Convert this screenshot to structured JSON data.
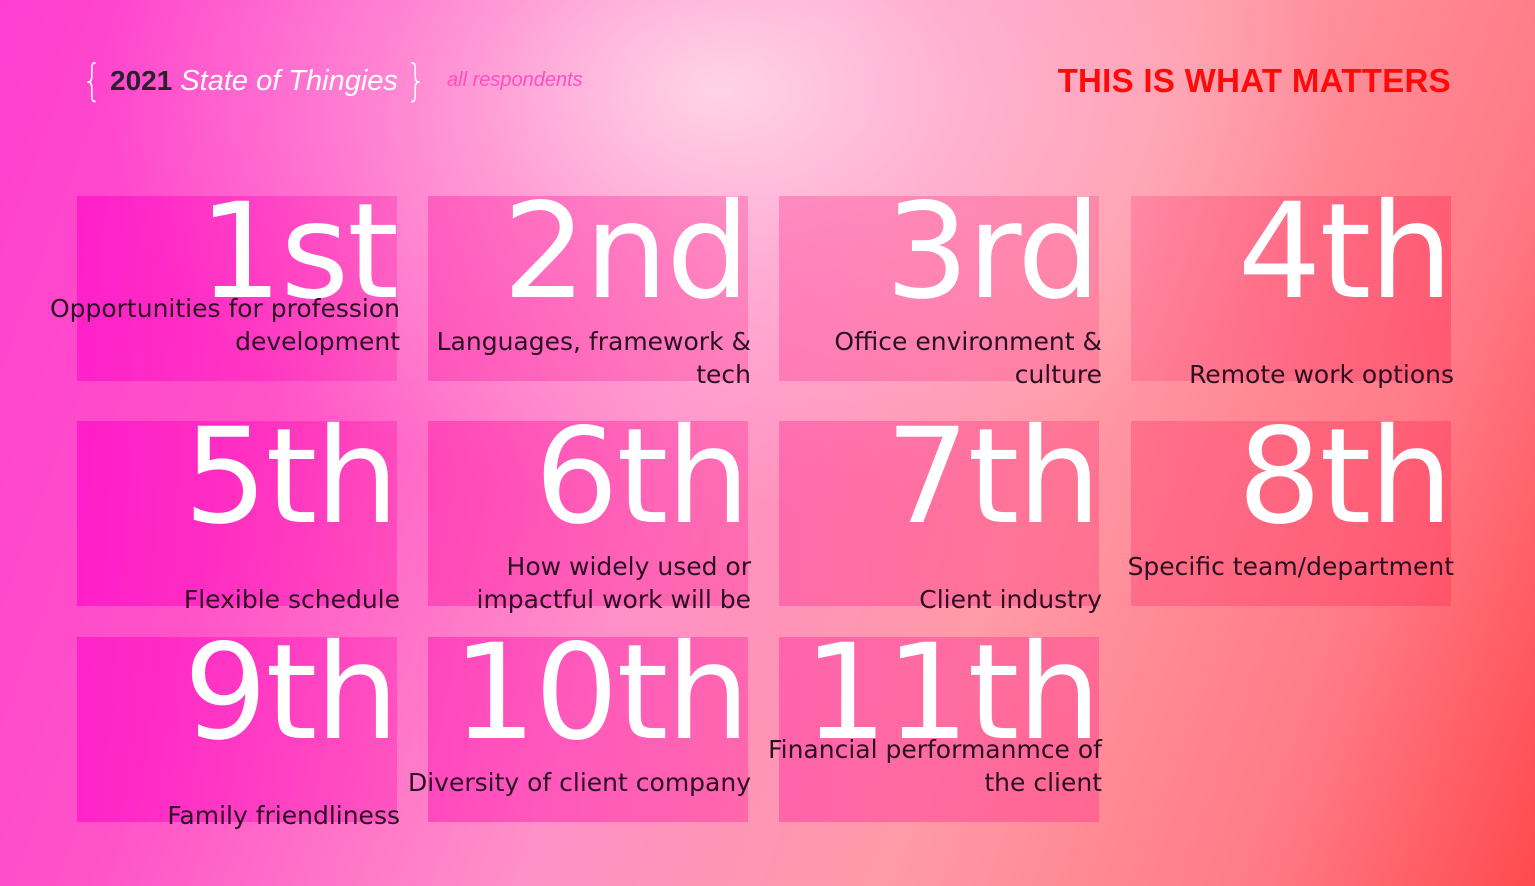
{
  "header": {
    "year": "2021",
    "title": "State of Thingies",
    "subtitle": "all respondents",
    "headline": "THIS IS WHAT MATTERS"
  },
  "ranks": [
    {
      "rank": "1st",
      "label": "Opportunities for profession development"
    },
    {
      "rank": "2nd",
      "label": "Languages, framework & tech"
    },
    {
      "rank": "3rd",
      "label": "Office environment & culture"
    },
    {
      "rank": "4th",
      "label": "Remote work options"
    },
    {
      "rank": "5th",
      "label": "Flexible schedule"
    },
    {
      "rank": "6th",
      "label": "How widely used or impactful work will be"
    },
    {
      "rank": "7th",
      "label": "Client industry"
    },
    {
      "rank": "8th",
      "label": "Specific team/department"
    },
    {
      "rank": "9th",
      "label": "Family friendliness"
    },
    {
      "rank": "10th",
      "label": "Diversity of client company"
    },
    {
      "rank": "11th",
      "label": "Financial performanmce of the client"
    }
  ],
  "colors": {
    "headline": "#ff0a0a",
    "subtitle": "#ff4fc0",
    "label_text": "#2b0f23"
  }
}
